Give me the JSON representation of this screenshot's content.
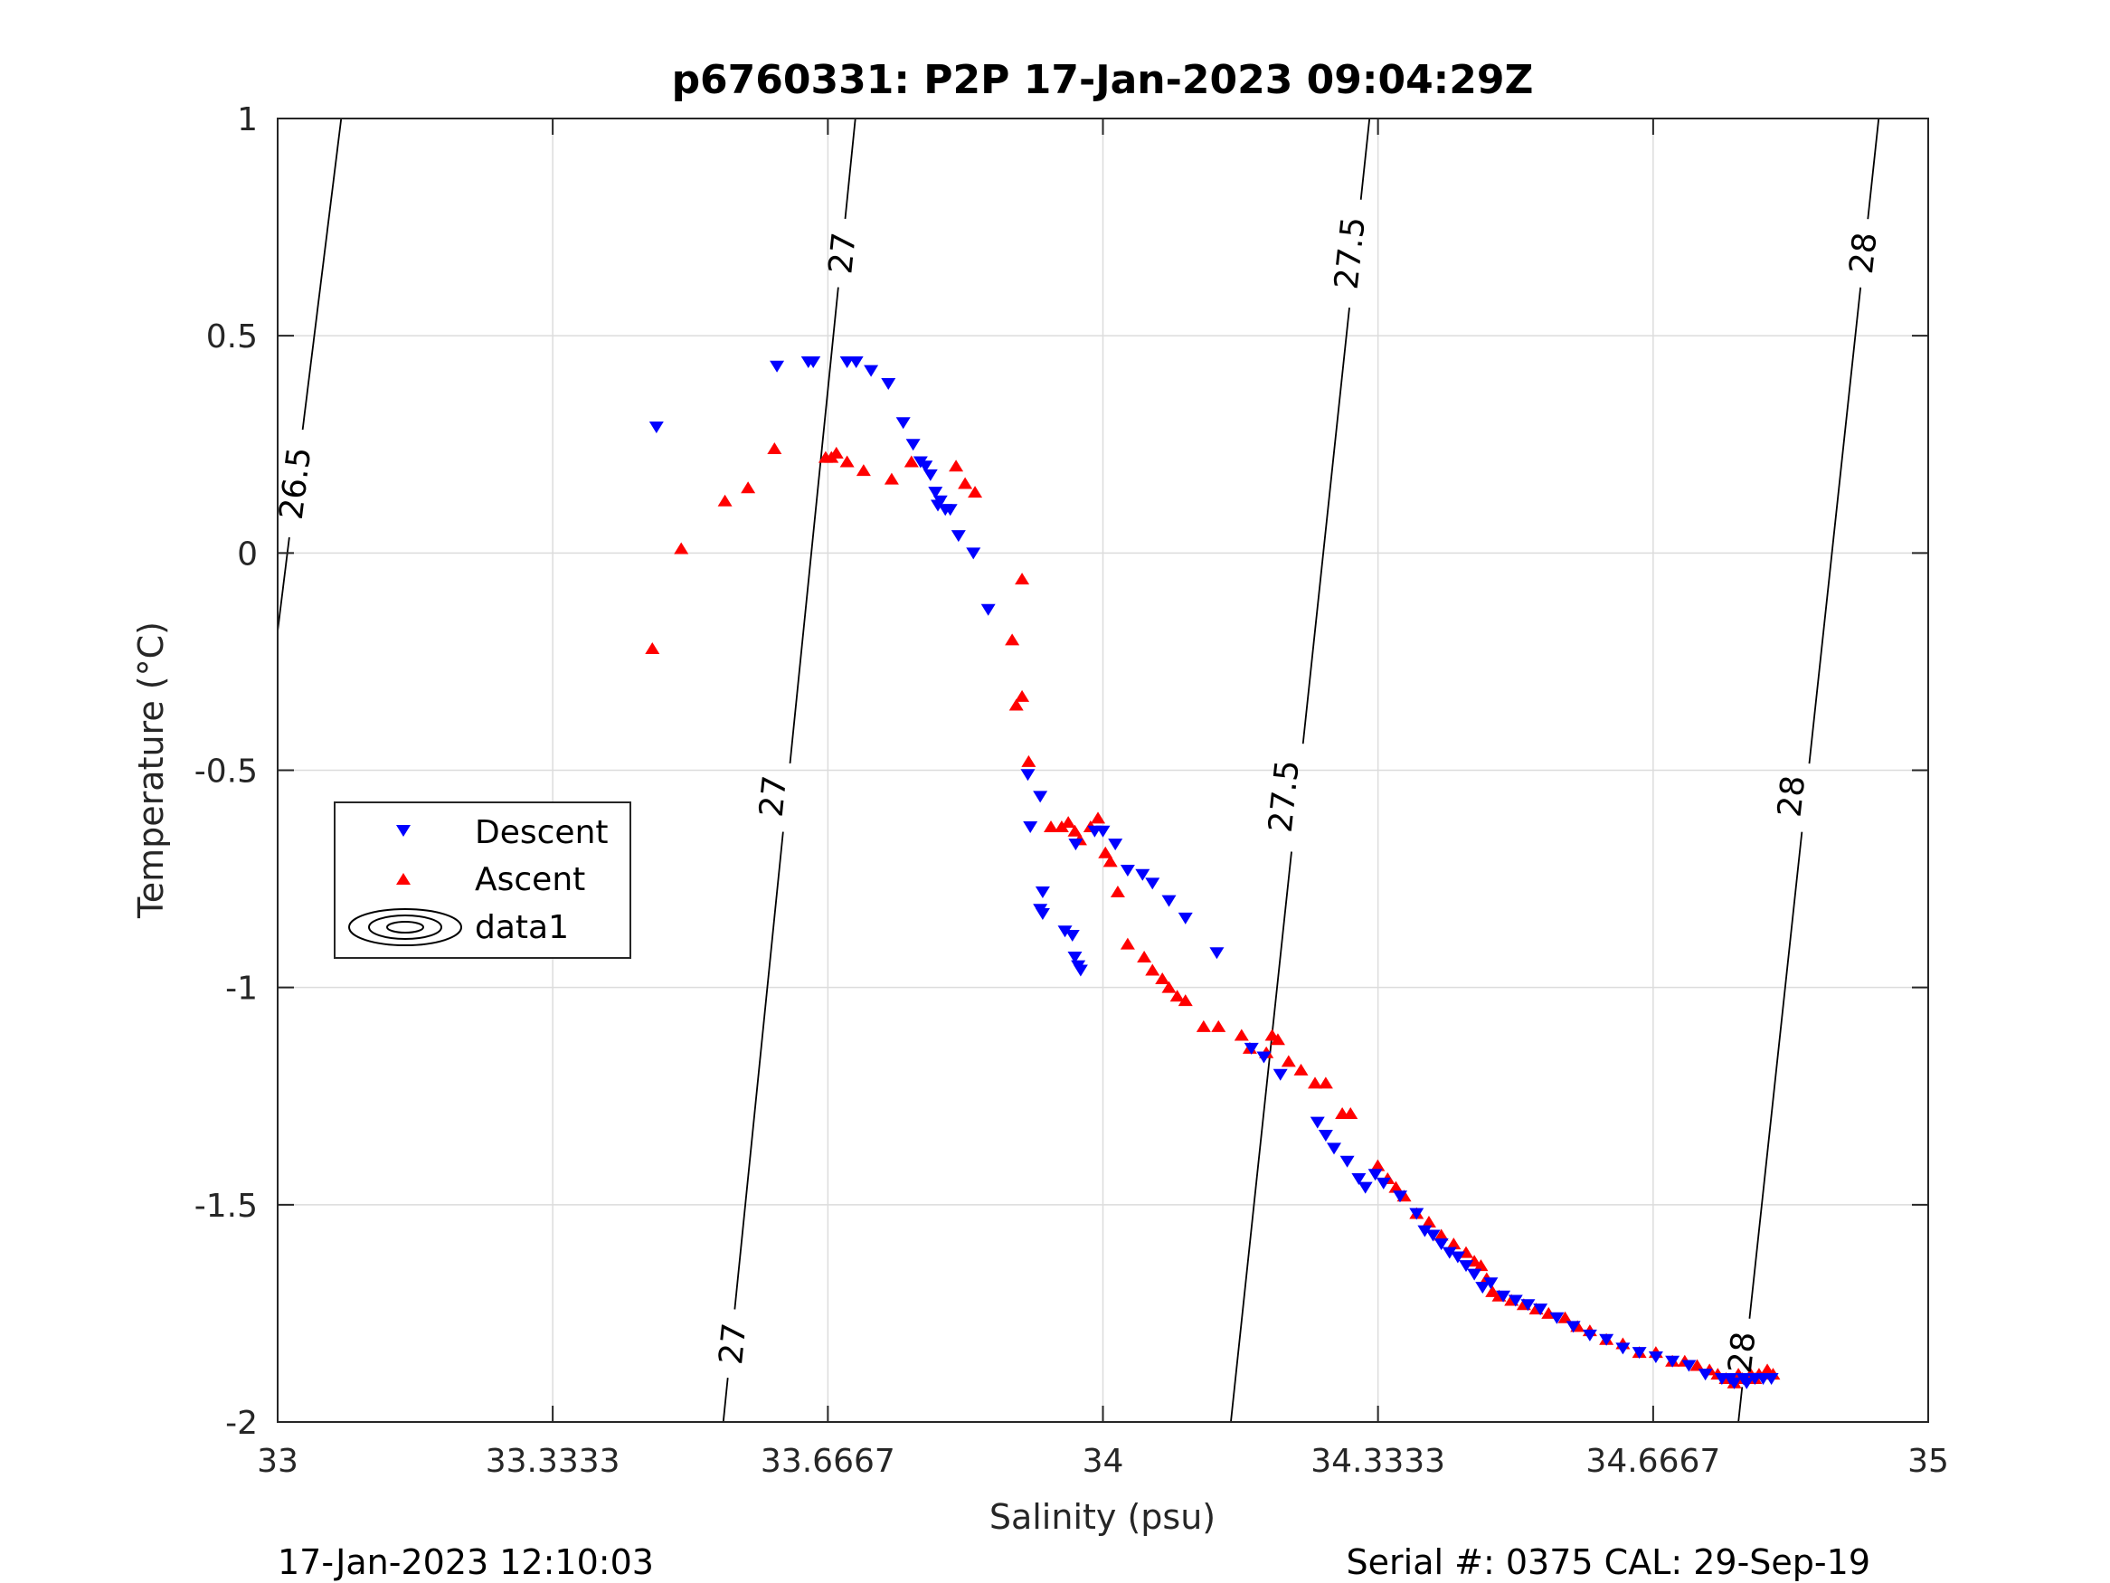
{
  "chart_data": {
    "type": "scatter",
    "title": "p6760331: P2P 17-Jan-2023 09:04:29Z",
    "xlabel": "Salinity (psu)",
    "ylabel": "Temperature (°C)",
    "xlim": [
      33,
      35
    ],
    "ylim": [
      -2,
      1
    ],
    "xticks": [
      33,
      33.3333,
      33.6667,
      34,
      34.3333,
      34.6667,
      35
    ],
    "xtick_labels": [
      "33",
      "33.3333",
      "33.6667",
      "34",
      "34.3333",
      "34.6667",
      "35"
    ],
    "yticks": [
      -2,
      -1.5,
      -1,
      -0.5,
      0,
      0.5,
      1
    ],
    "ytick_labels": [
      "-2",
      "-1.5",
      "-1",
      "-0.5",
      "0",
      "0.5",
      "1"
    ],
    "grid": true,
    "legend_position": "left",
    "legend": [
      "Descent",
      "Ascent",
      "data1"
    ],
    "colors": {
      "descent": "#0000ff",
      "ascent": "#ff0000",
      "contour": "#000000",
      "grid": "#dcdcdc"
    },
    "footer_left": "17-Jan-2023 12:10:03",
    "footer_right": "Serial #: 0375  CAL: 29-Sep-19",
    "contours": [
      {
        "sigma": "26.5",
        "points": [
          [
            33.0,
            -0.18
          ],
          [
            33.077,
            1.0
          ]
        ],
        "labels": [
          {
            "x": 33.022,
            "t": 0.16
          }
        ]
      },
      {
        "sigma": "27",
        "points": [
          [
            33.54,
            -2.0
          ],
          [
            33.7,
            1.0
          ]
        ],
        "labels": [
          {
            "x": 33.552,
            "t": -1.82
          },
          {
            "x": 33.601,
            "t": -0.56
          },
          {
            "x": 33.685,
            "t": 0.69
          }
        ]
      },
      {
        "sigma": "27.5",
        "points": [
          [
            34.155,
            -2.0
          ],
          [
            34.323,
            1.0
          ]
        ],
        "labels": [
          {
            "x": 34.22,
            "t": -0.56
          },
          {
            "x": 34.3,
            "t": 0.69
          }
        ]
      },
      {
        "sigma": "28",
        "points": [
          [
            34.77,
            -2.0
          ],
          [
            34.94,
            1.0
          ]
        ],
        "labels": [
          {
            "x": 34.775,
            "t": -1.84
          },
          {
            "x": 34.835,
            "t": -0.56
          },
          {
            "x": 34.922,
            "t": 0.69
          }
        ]
      }
    ],
    "series": [
      {
        "name": "Descent",
        "marker": "triangle-down",
        "points": [
          [
            33.459,
            0.29
          ],
          [
            33.605,
            0.43
          ],
          [
            33.643,
            0.44
          ],
          [
            33.649,
            0.44
          ],
          [
            33.69,
            0.44
          ],
          [
            33.701,
            0.44
          ],
          [
            33.719,
            0.42
          ],
          [
            33.74,
            0.39
          ],
          [
            33.758,
            0.3
          ],
          [
            33.77,
            0.25
          ],
          [
            33.779,
            0.21
          ],
          [
            33.785,
            0.2
          ],
          [
            33.791,
            0.18
          ],
          [
            33.797,
            0.14
          ],
          [
            33.8,
            0.11
          ],
          [
            33.803,
            0.12
          ],
          [
            33.809,
            0.1
          ],
          [
            33.815,
            0.1
          ],
          [
            33.825,
            0.04
          ],
          [
            33.843,
            0.0
          ],
          [
            33.861,
            -0.13
          ],
          [
            33.909,
            -0.51
          ],
          [
            33.912,
            -0.63
          ],
          [
            33.924,
            -0.56
          ],
          [
            33.927,
            -0.78
          ],
          [
            33.924,
            -0.82
          ],
          [
            33.927,
            -0.83
          ],
          [
            33.954,
            -0.87
          ],
          [
            33.963,
            -0.88
          ],
          [
            33.966,
            -0.93
          ],
          [
            33.97,
            -0.95
          ],
          [
            33.973,
            -0.96
          ],
          [
            33.967,
            -0.67
          ],
          [
            33.99,
            -0.64
          ],
          [
            34.0,
            -0.64
          ],
          [
            34.015,
            -0.67
          ],
          [
            34.03,
            -0.73
          ],
          [
            34.048,
            -0.74
          ],
          [
            34.06,
            -0.76
          ],
          [
            34.08,
            -0.8
          ],
          [
            34.1,
            -0.84
          ],
          [
            34.138,
            -0.92
          ],
          [
            34.18,
            -1.14
          ],
          [
            34.195,
            -1.16
          ],
          [
            34.215,
            -1.2
          ],
          [
            34.26,
            -1.31
          ],
          [
            34.27,
            -1.34
          ],
          [
            34.28,
            -1.37
          ],
          [
            34.296,
            -1.4
          ],
          [
            34.31,
            -1.44
          ],
          [
            34.318,
            -1.46
          ],
          [
            34.33,
            -1.43
          ],
          [
            34.34,
            -1.45
          ],
          [
            34.36,
            -1.48
          ],
          [
            34.38,
            -1.52
          ],
          [
            34.39,
            -1.56
          ],
          [
            34.4,
            -1.57
          ],
          [
            34.41,
            -1.59
          ],
          [
            34.42,
            -1.61
          ],
          [
            34.43,
            -1.62
          ],
          [
            34.44,
            -1.64
          ],
          [
            34.45,
            -1.66
          ],
          [
            34.46,
            -1.69
          ],
          [
            34.47,
            -1.68
          ],
          [
            34.485,
            -1.71
          ],
          [
            34.5,
            -1.72
          ],
          [
            34.515,
            -1.73
          ],
          [
            34.53,
            -1.74
          ],
          [
            34.55,
            -1.76
          ],
          [
            34.57,
            -1.78
          ],
          [
            34.59,
            -1.8
          ],
          [
            34.61,
            -1.81
          ],
          [
            34.63,
            -1.83
          ],
          [
            34.65,
            -1.84
          ],
          [
            34.67,
            -1.85
          ],
          [
            34.69,
            -1.86
          ],
          [
            34.71,
            -1.87
          ],
          [
            34.73,
            -1.89
          ],
          [
            34.75,
            -1.9
          ],
          [
            34.765,
            -1.91
          ],
          [
            34.78,
            -1.91
          ],
          [
            34.79,
            -1.9
          ],
          [
            34.8,
            -1.9
          ],
          [
            34.81,
            -1.9
          ],
          [
            34.776,
            -1.9
          ],
          [
            34.76,
            -1.9
          ]
        ]
      },
      {
        "name": "Ascent",
        "marker": "triangle-up",
        "points": [
          [
            33.454,
            -0.22
          ],
          [
            33.489,
            0.01
          ],
          [
            33.542,
            0.12
          ],
          [
            33.57,
            0.15
          ],
          [
            33.602,
            0.24
          ],
          [
            33.664,
            0.22
          ],
          [
            33.671,
            0.22
          ],
          [
            33.677,
            0.23
          ],
          [
            33.69,
            0.21
          ],
          [
            33.71,
            0.19
          ],
          [
            33.744,
            0.17
          ],
          [
            33.768,
            0.21
          ],
          [
            33.822,
            0.2
          ],
          [
            33.833,
            0.16
          ],
          [
            33.845,
            0.14
          ],
          [
            33.902,
            -0.06
          ],
          [
            33.89,
            -0.2
          ],
          [
            33.895,
            -0.35
          ],
          [
            33.902,
            -0.33
          ],
          [
            33.91,
            -0.48
          ],
          [
            33.937,
            -0.63
          ],
          [
            33.95,
            -0.63
          ],
          [
            33.958,
            -0.62
          ],
          [
            33.966,
            -0.64
          ],
          [
            33.972,
            -0.66
          ],
          [
            33.985,
            -0.63
          ],
          [
            33.994,
            -0.61
          ],
          [
            34.003,
            -0.69
          ],
          [
            34.009,
            -0.71
          ],
          [
            34.018,
            -0.78
          ],
          [
            34.03,
            -0.9
          ],
          [
            34.05,
            -0.93
          ],
          [
            34.06,
            -0.96
          ],
          [
            34.072,
            -0.98
          ],
          [
            34.08,
            -1.0
          ],
          [
            34.09,
            -1.02
          ],
          [
            34.1,
            -1.03
          ],
          [
            34.122,
            -1.09
          ],
          [
            34.14,
            -1.09
          ],
          [
            34.168,
            -1.11
          ],
          [
            34.178,
            -1.14
          ],
          [
            34.198,
            -1.15
          ],
          [
            34.205,
            -1.11
          ],
          [
            34.212,
            -1.12
          ],
          [
            34.225,
            -1.17
          ],
          [
            34.24,
            -1.19
          ],
          [
            34.257,
            -1.22
          ],
          [
            34.27,
            -1.22
          ],
          [
            34.29,
            -1.29
          ],
          [
            34.3,
            -1.29
          ],
          [
            34.333,
            -1.41
          ],
          [
            34.345,
            -1.44
          ],
          [
            34.355,
            -1.46
          ],
          [
            34.365,
            -1.48
          ],
          [
            34.38,
            -1.52
          ],
          [
            34.395,
            -1.54
          ],
          [
            34.41,
            -1.57
          ],
          [
            34.425,
            -1.59
          ],
          [
            34.44,
            -1.61
          ],
          [
            34.45,
            -1.63
          ],
          [
            34.458,
            -1.64
          ],
          [
            34.465,
            -1.67
          ],
          [
            34.472,
            -1.7
          ],
          [
            34.48,
            -1.71
          ],
          [
            34.495,
            -1.72
          ],
          [
            34.51,
            -1.73
          ],
          [
            34.525,
            -1.74
          ],
          [
            34.54,
            -1.75
          ],
          [
            34.56,
            -1.76
          ],
          [
            34.575,
            -1.78
          ],
          [
            34.59,
            -1.79
          ],
          [
            34.61,
            -1.81
          ],
          [
            34.63,
            -1.82
          ],
          [
            34.65,
            -1.84
          ],
          [
            34.67,
            -1.84
          ],
          [
            34.69,
            -1.86
          ],
          [
            34.705,
            -1.86
          ],
          [
            34.72,
            -1.87
          ],
          [
            34.735,
            -1.88
          ],
          [
            34.745,
            -1.89
          ],
          [
            34.755,
            -1.9
          ],
          [
            34.765,
            -1.91
          ],
          [
            34.775,
            -1.9
          ],
          [
            34.785,
            -1.89
          ],
          [
            34.795,
            -1.89
          ],
          [
            34.805,
            -1.88
          ],
          [
            34.812,
            -1.89
          ],
          [
            34.79,
            -1.9
          ],
          [
            34.77,
            -1.89
          ]
        ]
      }
    ]
  }
}
